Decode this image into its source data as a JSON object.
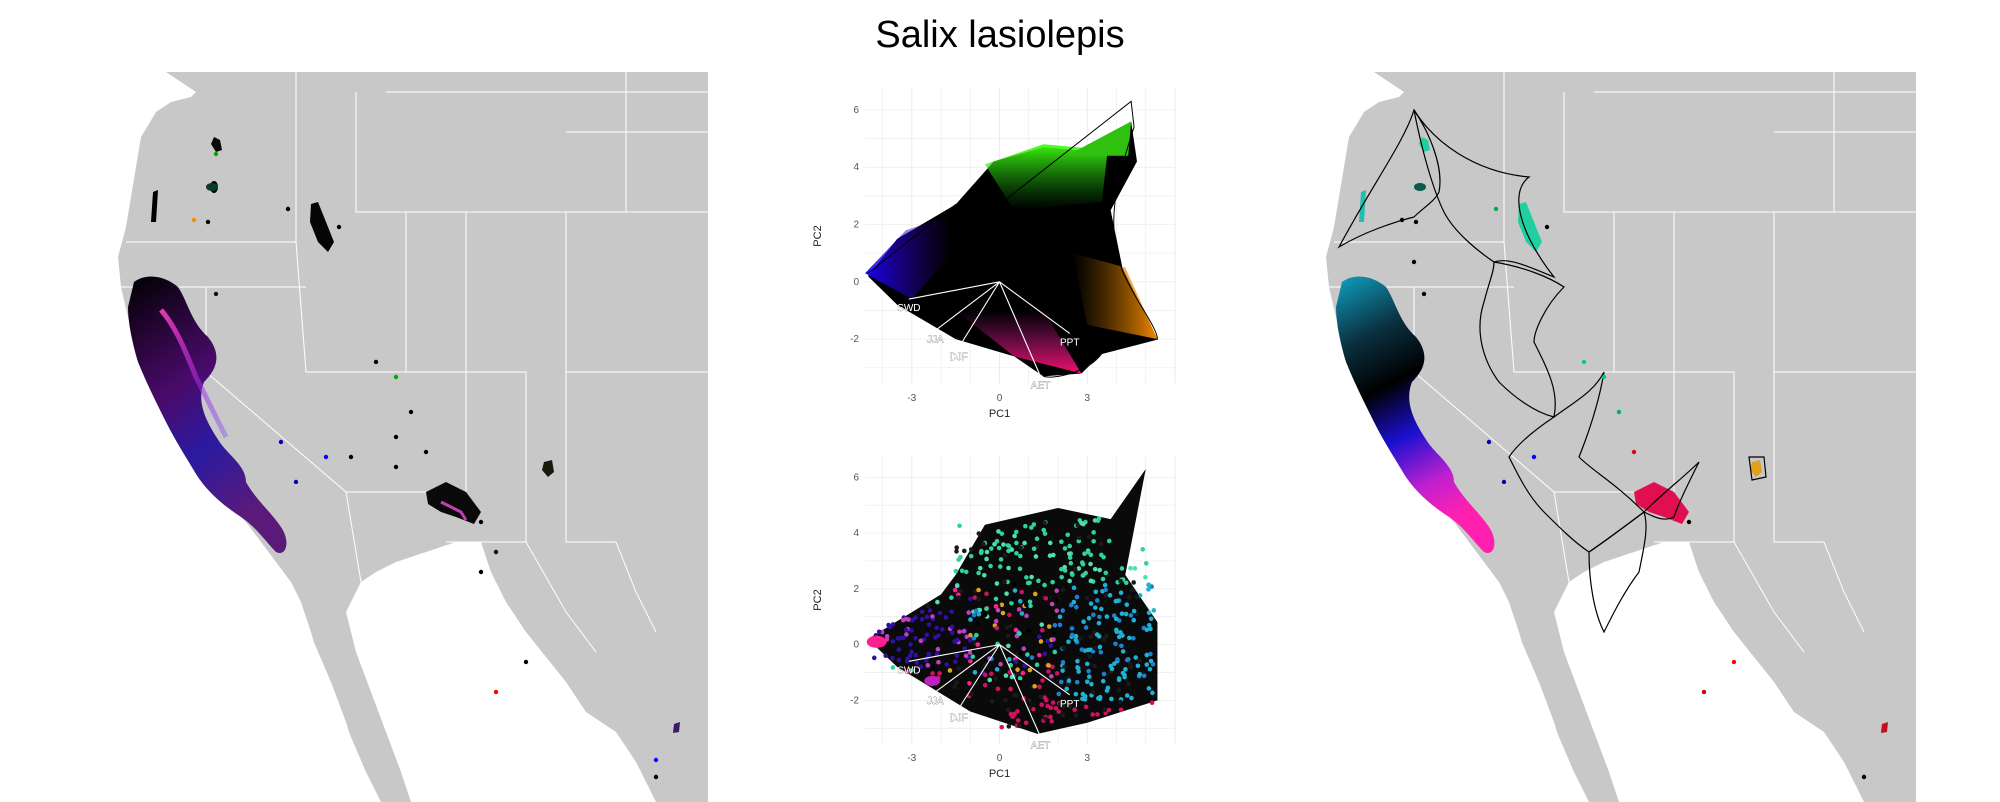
{
  "title": "Salix lasiolepis",
  "colors": {
    "land": "#c8c8c8",
    "ocean": "#ffffff",
    "borders": "#ffffff",
    "grid": "#ebebeb",
    "hull": "#000000"
  },
  "chart_data": [
    {
      "type": "scatter",
      "panel": "climate-pca-continuous-colors",
      "xlabel": "PC1",
      "ylabel": "PC2",
      "x_ticks": [
        -3,
        0,
        3
      ],
      "y_ticks": [
        -2,
        0,
        2,
        4,
        6
      ],
      "xlim": [
        -4.6,
        6.0
      ],
      "ylim": [
        -3.6,
        6.8
      ],
      "grid": true,
      "loading_vectors": [
        {
          "label": "SWD",
          "x": -3.1,
          "y": -0.6
        },
        {
          "label": "JJA",
          "x": -2.2,
          "y": -1.7
        },
        {
          "label": "DJF",
          "x": -1.4,
          "y": -2.3
        },
        {
          "label": "PPT",
          "x": 2.4,
          "y": -1.8
        },
        {
          "label": "AET",
          "x": 1.4,
          "y": -3.3
        }
      ]
    },
    {
      "type": "scatter",
      "panel": "climate-pca-cluster-colors",
      "xlabel": "PC1",
      "ylabel": "PC2",
      "x_ticks": [
        -3,
        0,
        3
      ],
      "y_ticks": [
        -2,
        0,
        2,
        4,
        6
      ],
      "xlim": [
        -4.6,
        6.0
      ],
      "ylim": [
        -3.6,
        6.8
      ],
      "grid": true,
      "loading_vectors": [
        {
          "label": "SWD",
          "x": -3.1,
          "y": -0.6
        },
        {
          "label": "JJA",
          "x": -2.2,
          "y": -1.7
        },
        {
          "label": "DJF",
          "x": -1.4,
          "y": -2.3
        },
        {
          "label": "PPT",
          "x": 2.4,
          "y": -1.8
        },
        {
          "label": "AET",
          "x": 1.4,
          "y": -3.3
        }
      ]
    }
  ]
}
